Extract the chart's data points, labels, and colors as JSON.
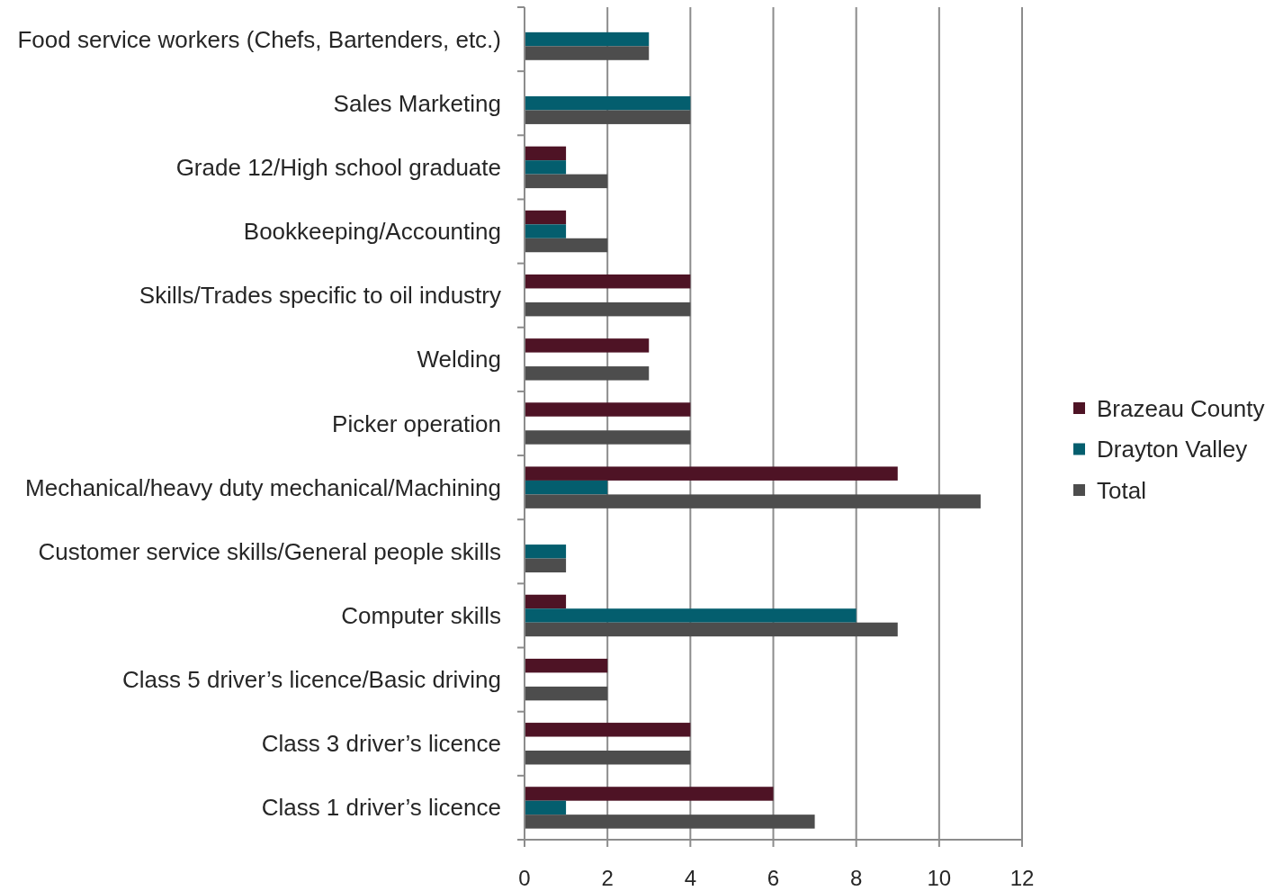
{
  "chart_data": {
    "type": "bar",
    "orientation": "horizontal",
    "categories": [
      "Food service workers (Chefs, Bartenders, etc.)",
      "Sales Marketing",
      "Grade 12/High school graduate",
      "Bookkeeping/Accounting",
      "Skills/Trades specific to oil industry",
      "Welding",
      "Picker operation",
      "Mechanical/heavy duty mechanical/Machining",
      "Customer service skills/General people skills",
      "Computer skills",
      "Class 5 driver’s licence/Basic driving",
      "Class 3 driver’s licence",
      "Class 1 driver’s licence"
    ],
    "series": [
      {
        "name": "Brazeau County",
        "color": "#4e1325",
        "values": [
          null,
          null,
          1,
          1,
          4,
          3,
          4,
          9,
          null,
          1,
          2,
          4,
          6
        ]
      },
      {
        "name": "Drayton Valley",
        "color": "#045e6e",
        "values": [
          3,
          4,
          1,
          1,
          null,
          null,
          null,
          2,
          1,
          8,
          null,
          null,
          1
        ]
      },
      {
        "name": "Total",
        "color": "#4d4d4d",
        "values": [
          3,
          4,
          2,
          2,
          4,
          3,
          4,
          11,
          1,
          9,
          2,
          4,
          7
        ]
      }
    ],
    "xlim": [
      0,
      12
    ],
    "xticks": [
      0,
      2,
      4,
      6,
      8,
      10,
      12
    ],
    "grid": "x",
    "legend": "right"
  }
}
